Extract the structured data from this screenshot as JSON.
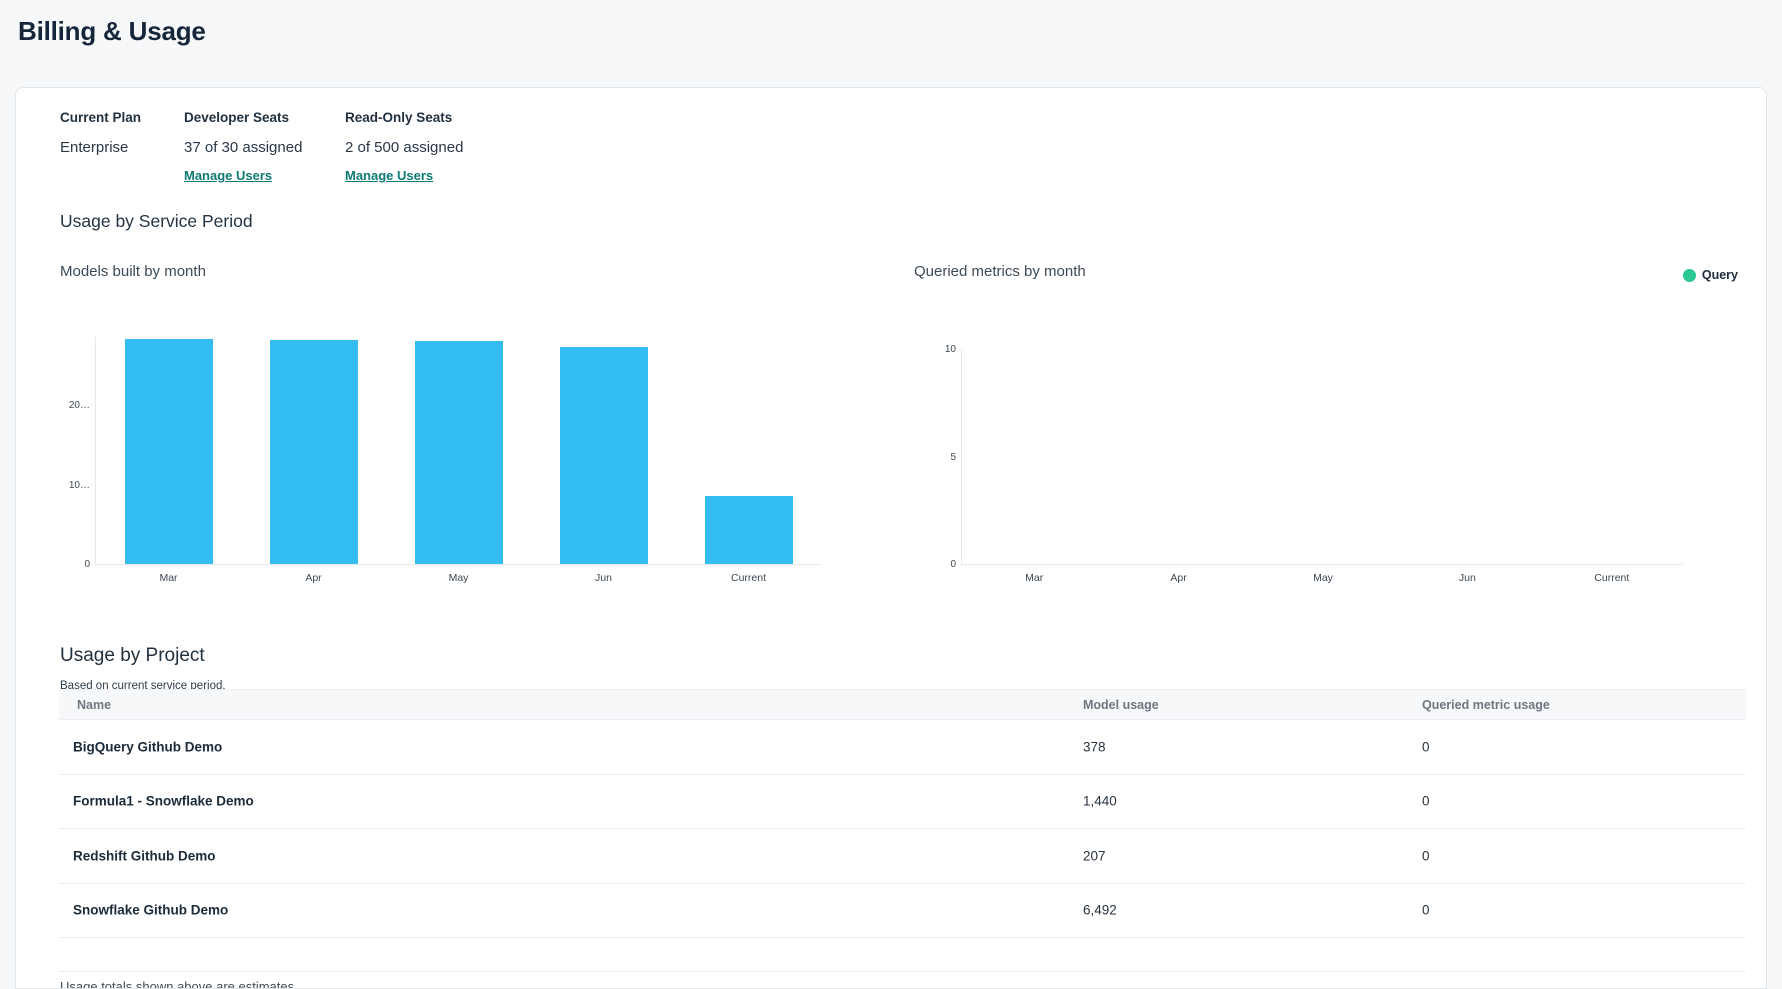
{
  "page": {
    "title": "Billing & Usage"
  },
  "plan": {
    "current_plan_label": "Current Plan",
    "current_plan_value": "Enterprise",
    "developer_seats_label": "Developer Seats",
    "developer_seats_value": "37 of 30 assigned",
    "developer_manage_link": "Manage Users",
    "readonly_seats_label": "Read-Only Seats",
    "readonly_seats_value": "2 of 500 assigned",
    "readonly_manage_link": "Manage Users"
  },
  "usage_section": {
    "title": "Usage by Service Period"
  },
  "chart_data": [
    {
      "type": "bar",
      "title": "Models built by month",
      "categories": [
        "Mar",
        "Apr",
        "May",
        "Jun",
        "Current"
      ],
      "values": [
        28300,
        28200,
        28100,
        27300,
        8600
      ],
      "ylim": [
        0,
        28700
      ],
      "yticks": {
        "values": [
          0,
          10000,
          20000
        ],
        "labels": [
          "0",
          "10…",
          "20…"
        ]
      },
      "bar_color": "#33bdf0",
      "grid": "off",
      "legend_position": "none"
    },
    {
      "type": "bar",
      "title": "Queried metrics by month",
      "categories": [
        "Mar",
        "Apr",
        "May",
        "Jun",
        "Current"
      ],
      "series": [
        {
          "name": "Query",
          "values": [
            0,
            0,
            0,
            0,
            0
          ],
          "color": "#2bc894"
        }
      ],
      "ylim": [
        0,
        10
      ],
      "yticks": {
        "values": [
          0,
          5,
          10
        ],
        "labels": [
          "0",
          "5",
          "10"
        ]
      },
      "grid": "off",
      "legend": {
        "position": "top-right",
        "entries": [
          {
            "label": "Query",
            "color": "#2bc894"
          }
        ]
      }
    }
  ],
  "projects_section": {
    "title": "Usage by Project",
    "subtitle": "Based on current service period.",
    "table": {
      "columns": [
        "Name",
        "Model usage",
        "Queried metric usage"
      ],
      "rows": [
        {
          "name": "BigQuery Github Demo",
          "model_usage": "378",
          "queried_metric_usage": "0"
        },
        {
          "name": "Formula1 - Snowflake Demo",
          "model_usage": "1,440",
          "queried_metric_usage": "0"
        },
        {
          "name": "Redshift Github Demo",
          "model_usage": "207",
          "queried_metric_usage": "0"
        },
        {
          "name": "Snowflake Github Demo",
          "model_usage": "6,492",
          "queried_metric_usage": "0"
        }
      ]
    },
    "footnote": "Usage totals shown above are estimates."
  },
  "colors": {
    "accent_bar_blue": "#33bdf0",
    "legend_green": "#2bc894",
    "link_teal": "#0e7a73",
    "page_background": "#f7f8f9",
    "card_background": "#ffffff"
  }
}
